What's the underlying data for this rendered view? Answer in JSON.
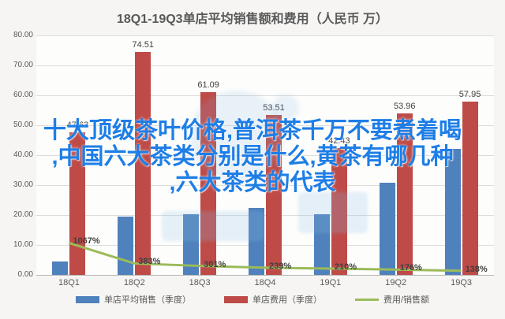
{
  "chart_data": {
    "type": "combo",
    "title": "18Q1-19Q3单店平均销售额和费用（人民币 万）",
    "categories": [
      "18Q1",
      "18Q2",
      "18Q3",
      "18Q4",
      "19Q1",
      "19Q2",
      "19Q3"
    ],
    "series": [
      {
        "name": "单店平均销售（季度）",
        "type": "bar",
        "color": "#4f81bd",
        "values": [
          4.5,
          19.5,
          20.3,
          22.4,
          20.2,
          30.7,
          42.0
        ],
        "labels": [
          "",
          "",
          "",
          "",
          "",
          "",
          ""
        ]
      },
      {
        "name": "单店费用（季度）",
        "type": "bar",
        "color": "#be4b48",
        "values": [
          47.63,
          74.51,
          61.09,
          53.51,
          42.43,
          53.96,
          57.95
        ],
        "labels": [
          "47.63",
          "74.51",
          "61.09",
          "53.51",
          "42.43",
          "53.96",
          "57.95"
        ]
      },
      {
        "name": "费用/销售额",
        "type": "line",
        "color": "#9bbb59",
        "values": [
          10.67,
          3.83,
          3.01,
          2.39,
          2.1,
          1.76,
          1.38
        ],
        "labels": [
          "1067%",
          "383%",
          "301%",
          "239%",
          "210%",
          "176%",
          "138%"
        ]
      }
    ],
    "y_axis": {
      "min": 0,
      "max": 80,
      "step": 10,
      "tick_labels": [
        "0.00",
        "10.00",
        "20.00",
        "30.00",
        "40.00",
        "50.00",
        "60.00",
        "70.00",
        "80.00"
      ]
    },
    "grid": true,
    "legend_position": "bottom",
    "text_color": "#595959"
  },
  "overlay": {
    "lines": [
      "十大顶级茶叶价格,普洱茶千万不要煮着喝",
      ",中国六大茶类分别是什么,黄茶有哪几种",
      ",六大茶类的代表"
    ],
    "color": "#1e7ee6"
  }
}
